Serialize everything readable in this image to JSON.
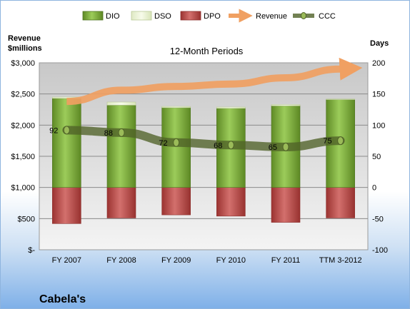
{
  "company": "Cabela's",
  "chart_data": {
    "type": "bar",
    "title": "12-Month Periods",
    "ylabel_left": "Revenue $millions",
    "ylabel_right": "Days",
    "categories": [
      "FY 2007",
      "FY 2008",
      "FY 2009",
      "FY 2010",
      "FY 2011",
      "TTM 3-2012"
    ],
    "y_left_ticks": [
      "$3,000",
      "$2,500",
      "$2,000",
      "$1,500",
      "$1,000",
      "$500",
      "$-"
    ],
    "y_left_range": [
      0,
      3000
    ],
    "y_right_ticks": [
      "200",
      "150",
      "100",
      "50",
      "0",
      "-50",
      "-100"
    ],
    "y_right_range": [
      -100,
      200
    ],
    "grid": true,
    "legend_position": "top",
    "legend": [
      {
        "name": "DIO",
        "color": "#77a33a"
      },
      {
        "name": "DSO",
        "color": "#eaf2d2"
      },
      {
        "name": "DPO",
        "color": "#c0504d"
      },
      {
        "name": "Revenue",
        "color": "#f79646"
      },
      {
        "name": "CCC",
        "color": "#4f6228"
      }
    ],
    "series": [
      {
        "name": "DIO",
        "axis": "days",
        "values": [
          143,
          132,
          128,
          127,
          131,
          141
        ]
      },
      {
        "name": "DSO",
        "axis": "days",
        "values": [
          2,
          5,
          2,
          2,
          2,
          1
        ]
      },
      {
        "name": "DPO",
        "axis": "days",
        "values": [
          -58,
          -49,
          -44,
          -46,
          -56,
          -49
        ]
      },
      {
        "name": "Revenue",
        "axis": "revenue",
        "values": [
          2380,
          2560,
          2620,
          2660,
          2760,
          2900
        ]
      },
      {
        "name": "CCC",
        "axis": "days",
        "values": [
          92,
          88,
          72,
          68,
          65,
          75
        ],
        "labels": [
          "92",
          "88",
          "72",
          "68",
          "65",
          "75"
        ]
      }
    ]
  }
}
